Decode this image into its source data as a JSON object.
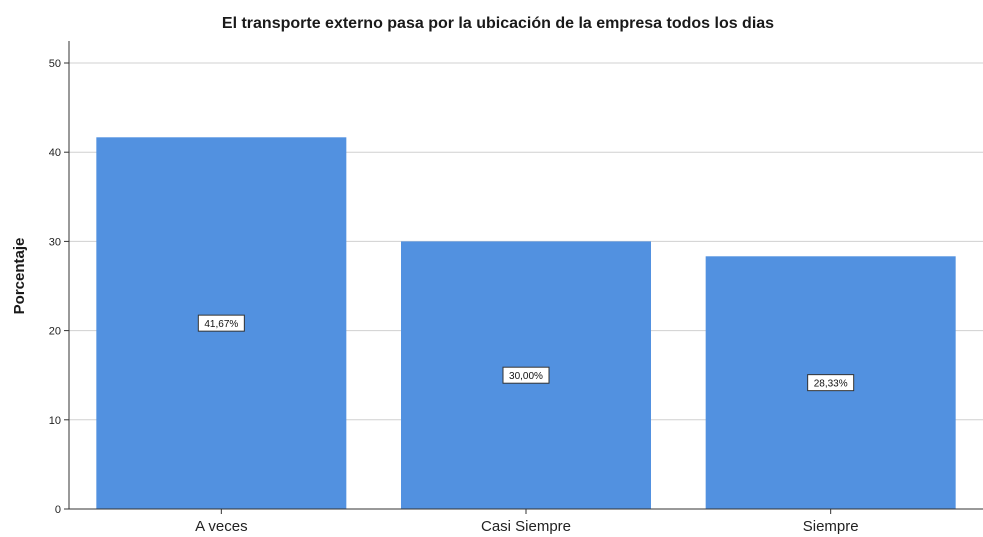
{
  "chart_data": {
    "type": "bar",
    "title": "El transporte externo pasa por la ubicación de la empresa todos los dias",
    "xlabel": "",
    "ylabel": "Porcentaje",
    "categories": [
      "A veces",
      "Casi Siempre",
      "Siempre"
    ],
    "values": [
      41.67,
      30.0,
      28.33
    ],
    "data_labels": [
      "41,67%",
      "30,00%",
      "28,33%"
    ],
    "ylim": [
      0,
      50
    ],
    "yticks": [
      0,
      10,
      20,
      30,
      40,
      50
    ],
    "ytick_labels": [
      "0",
      "10",
      "20",
      "30",
      "40",
      "50"
    ],
    "grid": true,
    "bar_color": "#5291e0",
    "legend": "none"
  }
}
